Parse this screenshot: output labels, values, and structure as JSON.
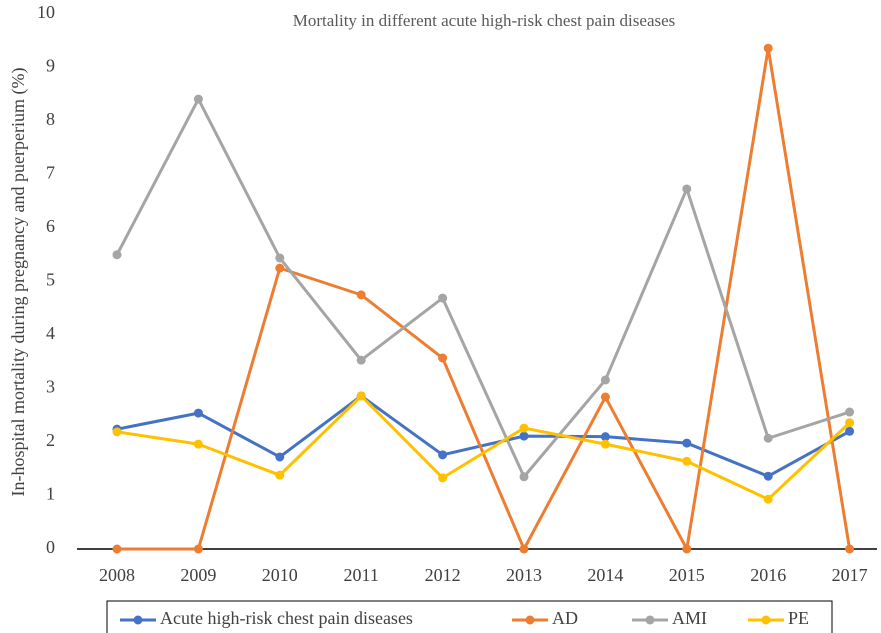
{
  "chart_data": {
    "type": "line",
    "title": "Mortality in different acute high-risk chest pain diseases",
    "y_label": "In-hospital mortality during pregnancy and puerperium (%)",
    "categories": [
      "2008",
      "2009",
      "2010",
      "2011",
      "2012",
      "2013",
      "2014",
      "2015",
      "2016",
      "2017"
    ],
    "series": [
      {
        "name": "Acute high-risk chest pain diseases",
        "color": "#4472c4",
        "values": [
          2.24,
          2.54,
          1.72,
          2.86,
          1.76,
          2.11,
          2.1,
          1.98,
          1.36,
          2.2
        ]
      },
      {
        "name": "AD",
        "color": "#ed7d31",
        "values": [
          0,
          0,
          5.25,
          4.75,
          3.57,
          0,
          2.84,
          0,
          9.36,
          0
        ]
      },
      {
        "name": "AMI",
        "color": "#a5a5a5",
        "values": [
          5.5,
          8.41,
          5.44,
          3.53,
          4.69,
          1.35,
          3.16,
          6.73,
          2.07,
          2.56
        ]
      },
      {
        "name": "PE",
        "color": "#ffc000",
        "values": [
          2.19,
          1.96,
          1.38,
          2.86,
          1.33,
          2.26,
          1.96,
          1.64,
          0.93,
          2.36
        ]
      }
    ],
    "ylim": [
      0,
      10
    ],
    "yticks": [
      0,
      1,
      2,
      3,
      4,
      5,
      6,
      7,
      8,
      9,
      10
    ],
    "grid": false,
    "legend": "bottom"
  }
}
